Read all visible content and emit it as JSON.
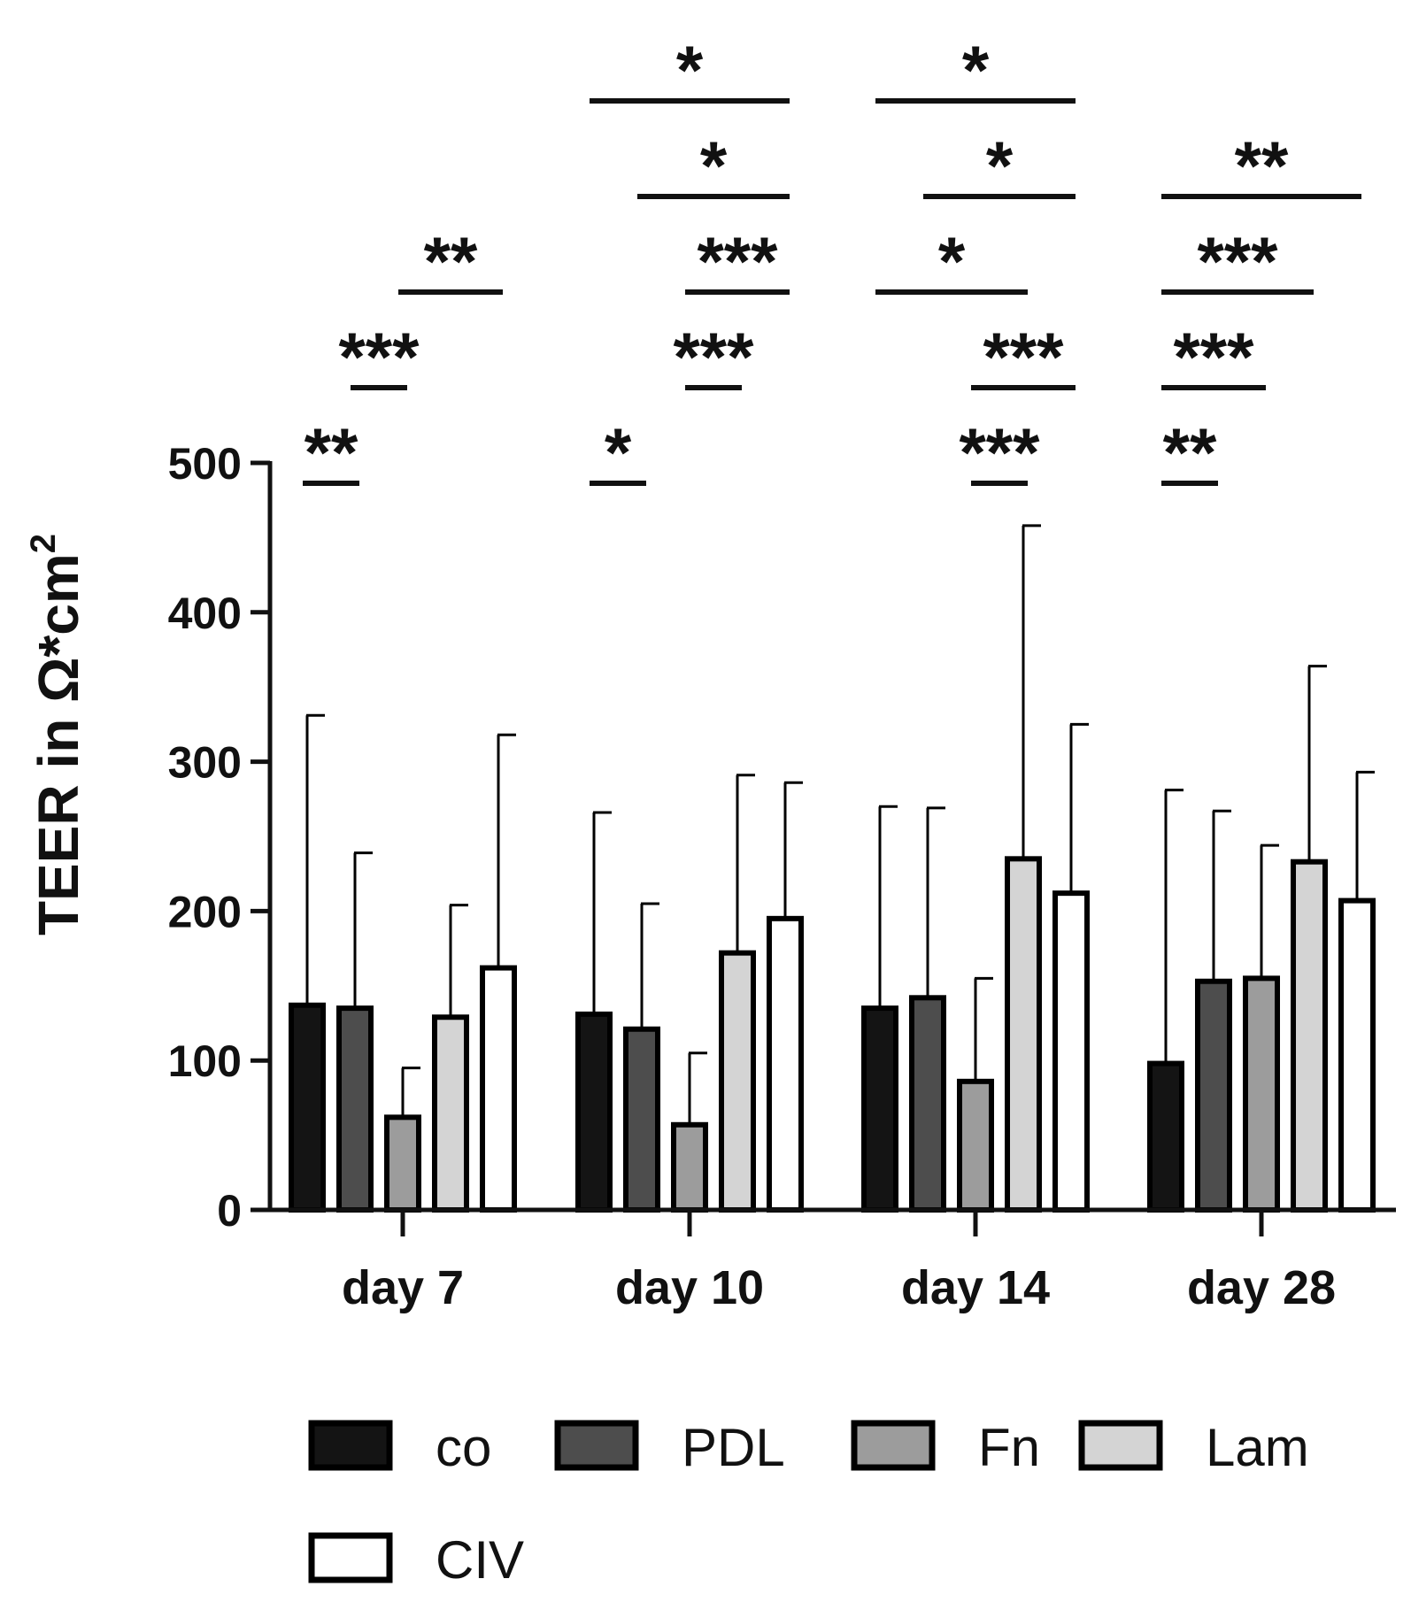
{
  "chart_data": {
    "type": "bar",
    "title": "",
    "xlabel": "",
    "ylabel": "TEER in Ω*cm",
    "ylabel_superscript": "2",
    "ylim": [
      0,
      500
    ],
    "yticks": [
      "0",
      "100",
      "200",
      "300",
      "400",
      "500"
    ],
    "categories": [
      "day 7",
      "day 10",
      "day 14",
      "day 28"
    ],
    "series": [
      {
        "name": "co",
        "color": "#141414",
        "values": [
          137,
          131,
          135,
          98
        ],
        "errors": [
          194,
          135,
          135,
          183
        ]
      },
      {
        "name": "PDL",
        "color": "#4d4d4d",
        "values": [
          135,
          121,
          142,
          153
        ],
        "errors": [
          104,
          84,
          127,
          114
        ]
      },
      {
        "name": "Fn",
        "color": "#9c9c9c",
        "values": [
          62,
          57,
          86,
          155
        ],
        "errors": [
          33,
          48,
          69,
          89
        ]
      },
      {
        "name": "Lam",
        "color": "#d4d4d4",
        "values": [
          129,
          172,
          235,
          233
        ],
        "errors": [
          75,
          119,
          223,
          131
        ]
      },
      {
        "name": "CIV",
        "color": "#ffffff",
        "values": [
          162,
          195,
          212,
          207
        ],
        "errors": [
          156,
          91,
          113,
          86
        ]
      }
    ],
    "significance": [
      {
        "group": 0,
        "from": 0,
        "to": 1,
        "label": "**"
      },
      {
        "group": 0,
        "from": 1,
        "to": 2,
        "label": "***"
      },
      {
        "group": 0,
        "from": 2,
        "to": 4,
        "label": "**"
      },
      {
        "group": 1,
        "from": 0,
        "to": 1,
        "label": "*"
      },
      {
        "group": 1,
        "from": 2,
        "to": 3,
        "label": "***"
      },
      {
        "group": 1,
        "from": 2,
        "to": 4,
        "label": "***"
      },
      {
        "group": 1,
        "from": 1,
        "to": 4,
        "label": "*"
      },
      {
        "group": 1,
        "from": 0,
        "to": 4,
        "label": "*"
      },
      {
        "group": 2,
        "from": 2,
        "to": 3,
        "label": "***"
      },
      {
        "group": 2,
        "from": 2,
        "to": 4,
        "label": "***"
      },
      {
        "group": 2,
        "from": 0,
        "to": 3,
        "label": "*"
      },
      {
        "group": 2,
        "from": 1,
        "to": 4,
        "label": "*"
      },
      {
        "group": 2,
        "from": 0,
        "to": 4,
        "label": "*"
      },
      {
        "group": 3,
        "from": 0,
        "to": 1,
        "label": "**"
      },
      {
        "group": 3,
        "from": 0,
        "to": 2,
        "label": "***"
      },
      {
        "group": 3,
        "from": 0,
        "to": 3,
        "label": "***"
      },
      {
        "group": 3,
        "from": 0,
        "to": 4,
        "label": "**"
      }
    ],
    "legend": [
      "co",
      "PDL",
      "Fn",
      "Lam",
      "CIV"
    ],
    "legend_position": "bottom",
    "grid": false
  }
}
